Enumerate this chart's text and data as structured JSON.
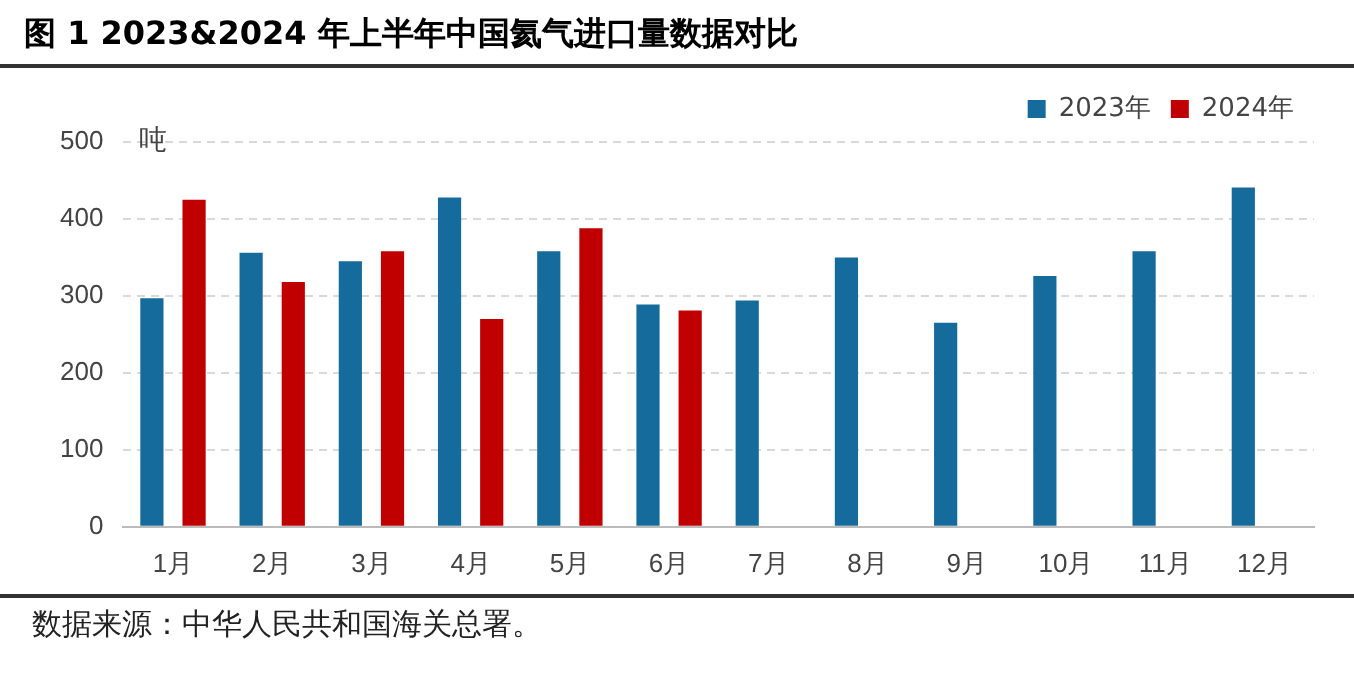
{
  "chart_data": {
    "type": "bar",
    "title": "图 1 2023&2024 年上半年中国氦气进口量数据对比",
    "ylabel": "吨",
    "categories": [
      "1月",
      "2月",
      "3月",
      "4月",
      "5月",
      "6月",
      "7月",
      "8月",
      "9月",
      "10月",
      "11月",
      "12月"
    ],
    "series": [
      {
        "name": "2023年",
        "color": "#156b9b",
        "values": [
          297,
          356,
          345,
          428,
          358,
          289,
          294,
          350,
          265,
          326,
          358,
          441
        ]
      },
      {
        "name": "2024年",
        "color": "#c00000",
        "values": [
          425,
          318,
          358,
          270,
          388,
          281,
          null,
          null,
          null,
          null,
          null,
          null
        ]
      }
    ],
    "ylim": [
      0,
      500
    ],
    "yticks": [
      0,
      100,
      200,
      300,
      400,
      500
    ],
    "grid": "y",
    "legend": "top right",
    "annotations": [
      "数据来源：中华人民共和国海关总署。"
    ]
  }
}
